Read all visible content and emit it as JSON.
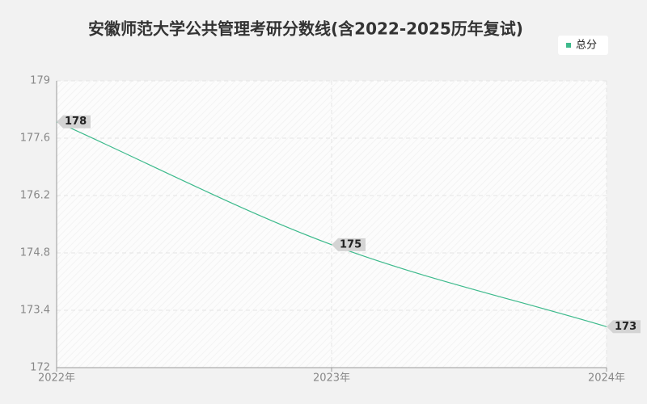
{
  "chart_data": {
    "type": "line",
    "title": "安徽师范大学公共管理考研分数线(含2022-2025历年复试)",
    "categories": [
      "2022年",
      "2023年",
      "2024年"
    ],
    "series": [
      {
        "name": "总分",
        "color": "#3dba8c",
        "values": [
          178,
          175,
          173
        ]
      }
    ],
    "ylim": [
      172,
      179
    ],
    "yticks": [
      172,
      173.4,
      174.8,
      176.2,
      177.6,
      179
    ],
    "grid": true,
    "legend": "top-right"
  }
}
